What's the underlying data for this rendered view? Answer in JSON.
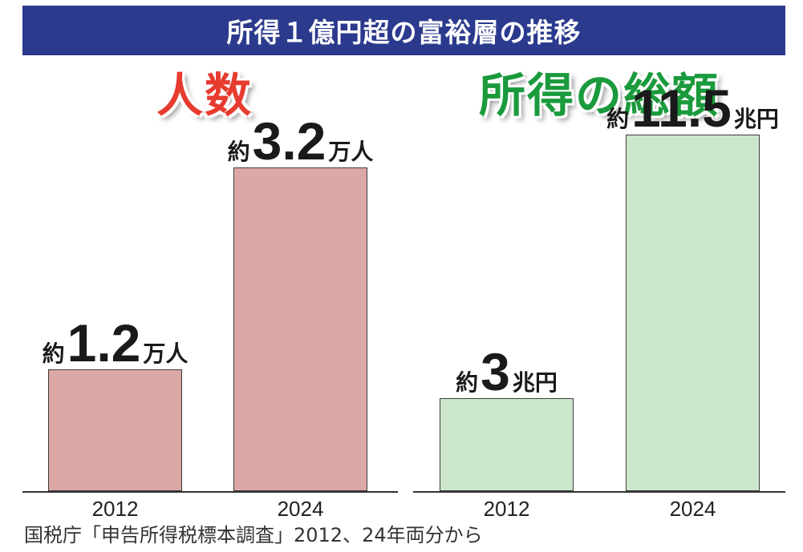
{
  "banner": {
    "title": "所得１億円超の富裕層の推移"
  },
  "colors": {
    "banner_bg": "#2b3a8d",
    "people_bar": "#dca8a5",
    "people_title": "#e63b2e",
    "income_bar": "#cde7cd",
    "income_title": "#1a9a3c"
  },
  "chart_data": [
    {
      "type": "bar",
      "title": "人数",
      "categories": [
        "2012",
        "2024"
      ],
      "values": [
        1.2,
        3.2
      ],
      "ylim": [
        0,
        3.8
      ],
      "labels": [
        {
          "prefix": "約",
          "number": "1.2",
          "unit": "万人"
        },
        {
          "prefix": "約",
          "number": "3.2",
          "unit": "万人"
        }
      ]
    },
    {
      "type": "bar",
      "title": "所得の総額",
      "categories": [
        "2012",
        "2024"
      ],
      "values": [
        3,
        11.5
      ],
      "ylim": [
        0,
        12.4
      ],
      "labels": [
        {
          "prefix": "約",
          "number": "3",
          "unit": "兆円"
        },
        {
          "prefix": "約",
          "number": "11.5",
          "unit": "兆円"
        }
      ]
    }
  ],
  "source": "国税庁「申告所得税標本調査」2012、24年両分から"
}
